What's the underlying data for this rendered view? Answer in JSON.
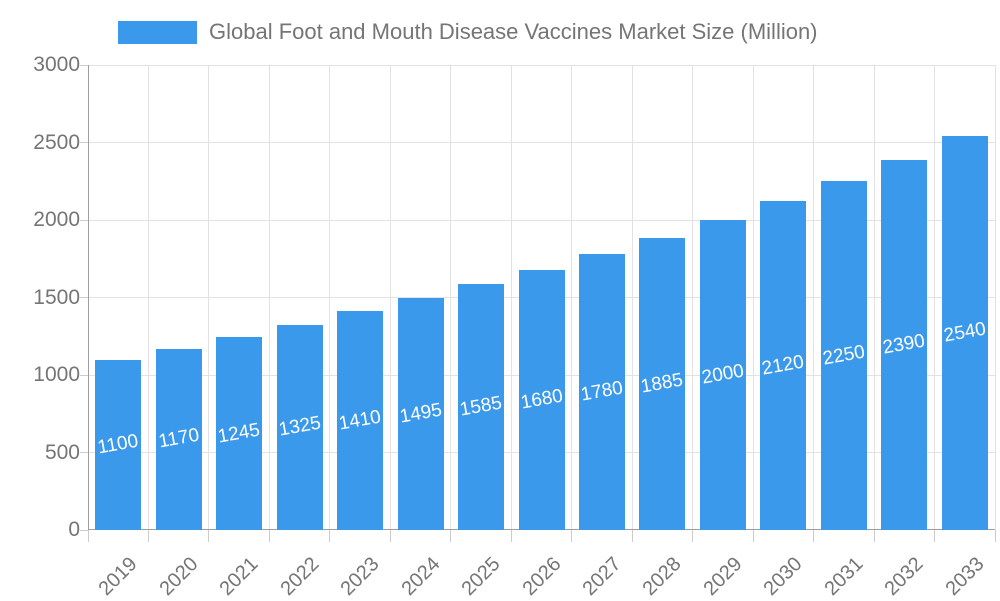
{
  "legend": {
    "label": "Global Foot and Mouth Disease Vaccines Market Size (Million)"
  },
  "chart_data": {
    "type": "bar",
    "title": "Global Foot and Mouth Disease Vaccines Market Size (Million)",
    "categories": [
      "2019",
      "2020",
      "2021",
      "2022",
      "2023",
      "2024",
      "2025",
      "2026",
      "2027",
      "2028",
      "2029",
      "2030",
      "2031",
      "2032",
      "2033"
    ],
    "values": [
      1100,
      1170,
      1245,
      1325,
      1410,
      1495,
      1585,
      1680,
      1780,
      1885,
      2000,
      2120,
      2250,
      2390,
      2540
    ],
    "data_labels": [
      "1100",
      "1170",
      "1245",
      "1325",
      "1410",
      "1495",
      "1585",
      "1680",
      "1780",
      "1885",
      "2000",
      "2120",
      "2250",
      "2390",
      "2540"
    ],
    "xlabel": "",
    "ylabel": "",
    "ylim": [
      0,
      3000
    ],
    "yticks": [
      0,
      500,
      1000,
      1500,
      2000,
      2500,
      3000
    ],
    "grid": true,
    "legend_position": "top",
    "colors": {
      "bar": "#3b99ec",
      "bar_label_text": "#ffffff",
      "axis_text": "#757575",
      "gridline": "#e2e2e2",
      "axis_line": "#9e9e9e",
      "tick": "#cccccc"
    }
  }
}
